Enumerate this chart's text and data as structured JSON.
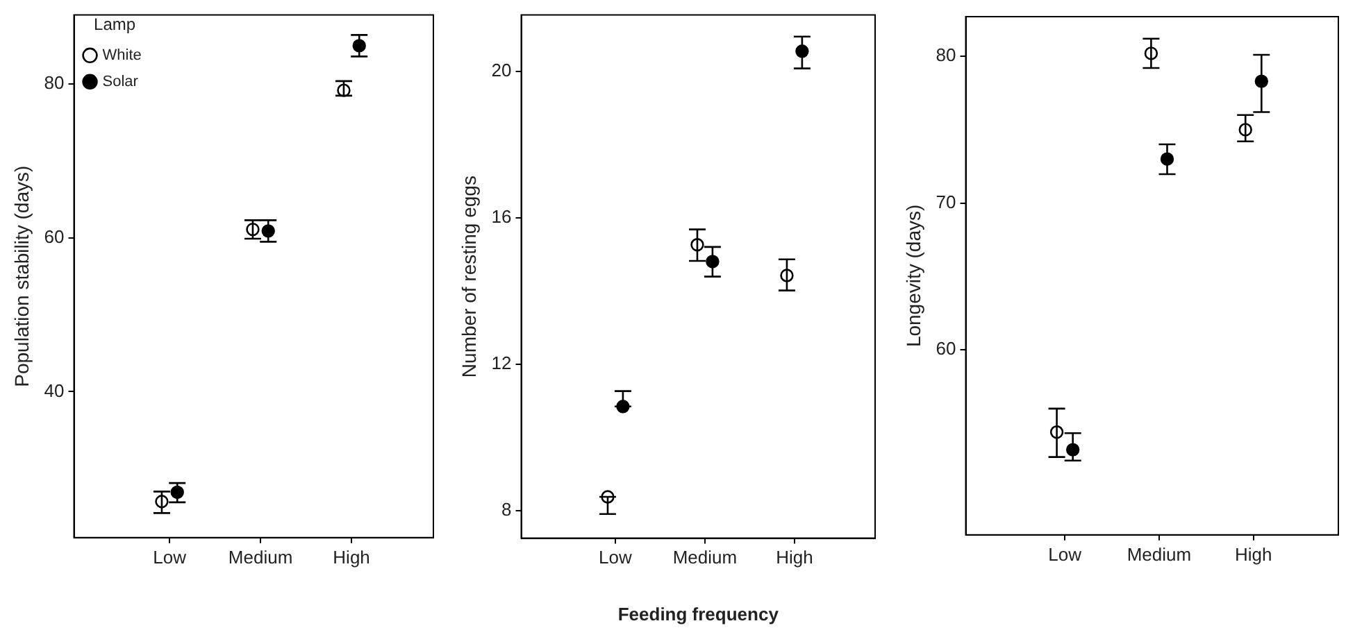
{
  "chart_data": [
    {
      "type": "scatter",
      "ylabel": "Population stability (days)",
      "categories": [
        "Low",
        "Medium",
        "High"
      ],
      "ylim": [
        21,
        89
      ],
      "yticks": [
        40,
        60,
        80
      ],
      "legend": "top left",
      "legend_title": "Lamp",
      "marker": "circle",
      "grid": false,
      "series": [
        {
          "name": "White",
          "color": "#ffffff",
          "values": [
            25.7,
            61.1,
            79.2
          ],
          "errors": [
            [
              24.2,
              27.0
            ],
            [
              59.9,
              62.3
            ],
            [
              78.5,
              80.4
            ]
          ]
        },
        {
          "name": "Solar",
          "color": "#000000",
          "values": [
            26.9,
            60.9,
            85.0
          ],
          "errors": [
            [
              25.6,
              28.1
            ],
            [
              59.5,
              62.3
            ],
            [
              83.6,
              86.4
            ]
          ]
        }
      ]
    },
    {
      "type": "scatter",
      "ylabel": "Number of resting eggs",
      "xlabel": "Feeding frequency",
      "categories": [
        "Low",
        "Medium",
        "High"
      ],
      "ylim": [
        7.25,
        21.55
      ],
      "yticks": [
        8,
        12,
        16,
        20
      ],
      "legend": false,
      "marker": "circle",
      "grid": false,
      "series": [
        {
          "color": "#ffffff",
          "values": [
            8.38,
            15.27,
            14.43
          ],
          "errors": [
            [
              7.91,
              8.38
            ],
            [
              14.83,
              15.69
            ],
            [
              14.02,
              14.87
            ]
          ]
        },
        {
          "color": "#000000",
          "values": [
            10.85,
            14.81,
            20.56
          ],
          "errors": [
            [
              10.85,
              11.27
            ],
            [
              14.4,
              15.21
            ],
            [
              20.09,
              20.96
            ]
          ]
        }
      ]
    },
    {
      "type": "scatter",
      "ylabel": "Longevity (days)",
      "categories": [
        "Low",
        "Medium",
        "High"
      ],
      "ylim": [
        47.4,
        82.7
      ],
      "yticks": [
        60,
        70,
        80
      ],
      "legend": false,
      "marker": "circle",
      "grid": false,
      "series": [
        {
          "color": "#ffffff",
          "values": [
            54.4,
            80.2,
            75.0
          ],
          "errors": [
            [
              52.7,
              56.0
            ],
            [
              79.2,
              81.2
            ],
            [
              74.2,
              76.0
            ]
          ]
        },
        {
          "color": "#000000",
          "values": [
            53.2,
            73.0,
            78.3
          ],
          "errors": [
            [
              52.46,
              54.33
            ],
            [
              71.97,
              74.0
            ],
            [
              76.2,
              80.1
            ]
          ]
        }
      ]
    }
  ]
}
